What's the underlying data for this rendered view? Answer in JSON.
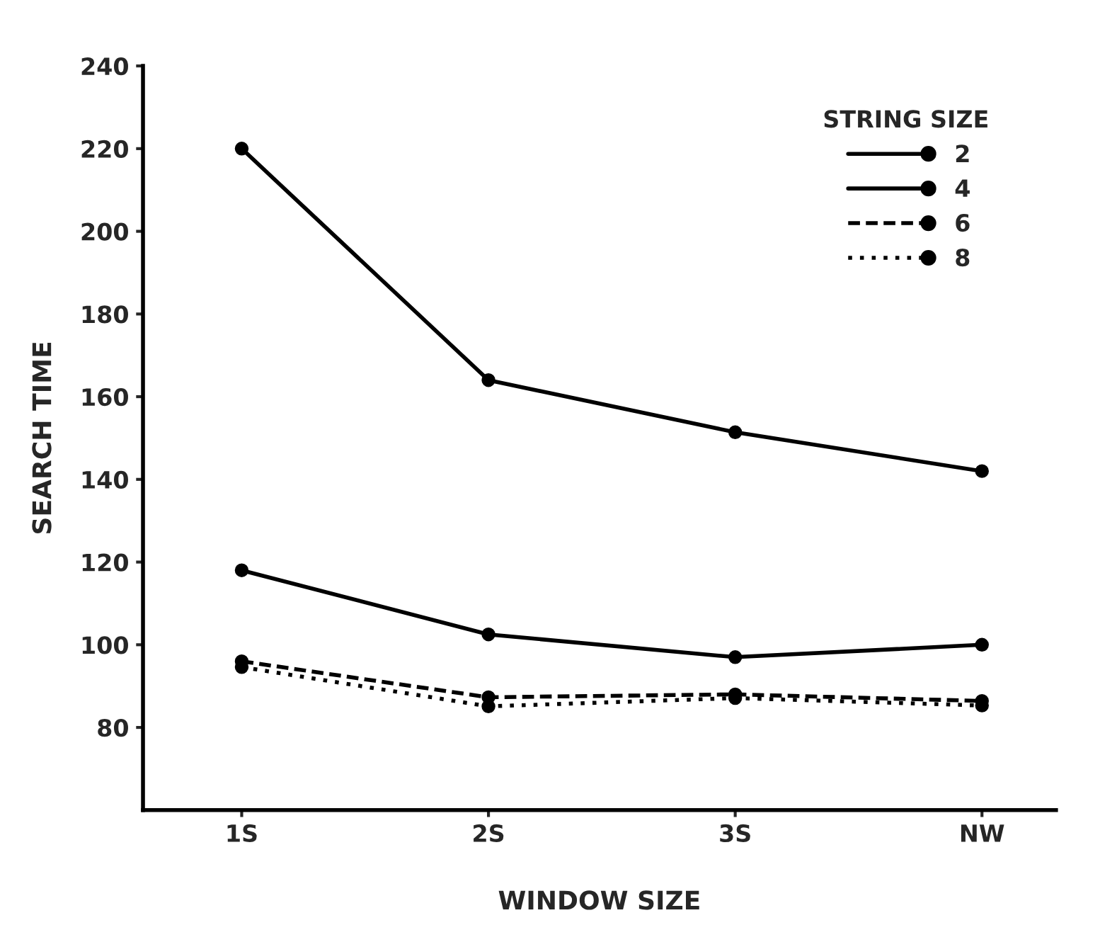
{
  "chart_data": {
    "type": "line",
    "xlabel": "WINDOW SIZE",
    "ylabel": "SEARCH TIME",
    "legend_title": "STRING SIZE",
    "categories": [
      "1S",
      "2S",
      "3S",
      "NW"
    ],
    "series": [
      {
        "name": "2",
        "color": "#000000",
        "values": [
          220,
          164,
          151.4,
          142
        ],
        "line_style": "solid"
      },
      {
        "name": "4",
        "color": "#000000",
        "values": [
          118,
          102.5,
          97,
          100
        ],
        "line_style": "solid"
      },
      {
        "name": "6",
        "color": "#000000",
        "values": [
          96,
          87.3,
          88,
          86.4
        ],
        "line_style": "dashed"
      },
      {
        "name": "8",
        "color": "#000000",
        "values": [
          94.6,
          85.1,
          87.1,
          85.3
        ],
        "line_style": "dotted"
      }
    ],
    "marker": "circle",
    "ylim": [
      60,
      240
    ],
    "yticks": [
      80,
      100,
      120,
      140,
      160,
      180,
      200,
      220,
      240
    ],
    "grid": false,
    "legend": "top right"
  }
}
